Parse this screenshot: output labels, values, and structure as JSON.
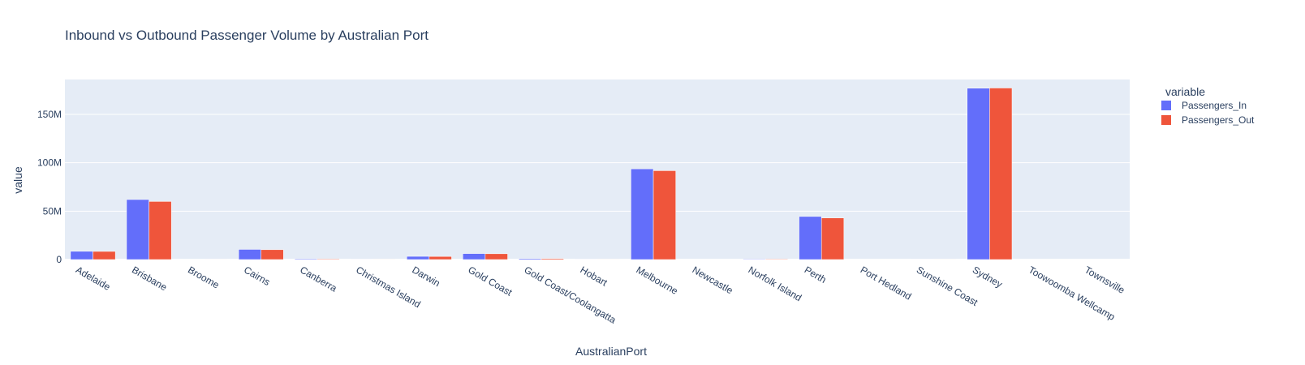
{
  "chart_data": {
    "type": "bar",
    "title": "Inbound vs Outbound Passenger Volume by Australian Port",
    "xlabel": "AustralianPort",
    "ylabel": "value",
    "ylim": [
      0,
      186000000
    ],
    "yticks": [
      0,
      50000000,
      100000000,
      150000000
    ],
    "ytick_labels": [
      "0",
      "50M",
      "100M",
      "150M"
    ],
    "grid": true,
    "legend": {
      "title": "variable",
      "position": "top-right"
    },
    "categories": [
      "Adelaide",
      "Brisbane",
      "Broome",
      "Cairns",
      "Canberra",
      "Christmas Island",
      "Darwin",
      "Gold Coast",
      "Gold Coast/Coolangatta",
      "Hobart",
      "Melbourne",
      "Newcastle",
      "Norfolk Island",
      "Perth",
      "Port Hedland",
      "Sunshine Coast",
      "Sydney",
      "Toowoomba Wellcamp",
      "Townsville"
    ],
    "series": [
      {
        "name": "Passengers_In",
        "color": "#636efa",
        "values": [
          8500000,
          62000000,
          30000,
          10500000,
          800000,
          100000,
          3300000,
          6200000,
          1000000,
          100000,
          93700000,
          200000,
          600000,
          44500000,
          20000,
          50000,
          177000000,
          20000,
          200000
        ]
      },
      {
        "name": "Passengers_Out",
        "color": "#ef553b",
        "values": [
          8400000,
          60000000,
          30000,
          10200000,
          700000,
          100000,
          3200000,
          6000000,
          1000000,
          100000,
          91800000,
          200000,
          600000,
          43000000,
          20000,
          50000,
          177200000,
          20000,
          200000
        ]
      }
    ]
  }
}
